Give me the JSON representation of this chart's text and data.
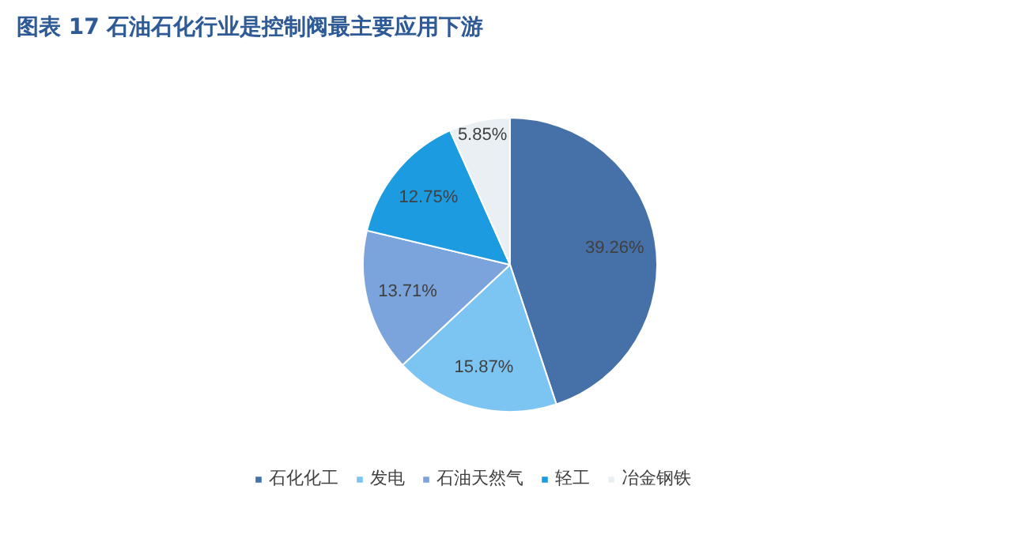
{
  "chart_data": {
    "type": "pie",
    "title": "图表 17 石油石化行业是控制阀最主要应用下游",
    "categories": [
      "石化化工",
      "发电",
      "石油天然气",
      "轻工",
      "冶金钢铁"
    ],
    "values": [
      39.26,
      15.87,
      13.71,
      12.75,
      5.85
    ],
    "colors": [
      "#4570a8",
      "#7cc5f2",
      "#7ba3dc",
      "#1c9be0",
      "#e9eff3"
    ],
    "value_labels": [
      "39.26%",
      "15.87%",
      "13.71%",
      "12.75%",
      "5.85%"
    ],
    "legend": "bottom"
  }
}
